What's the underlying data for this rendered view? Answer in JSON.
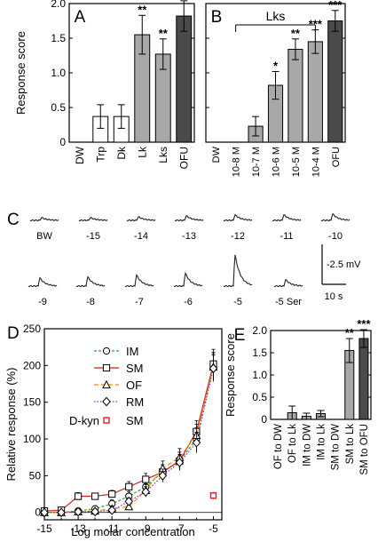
{
  "panels": {
    "A": {
      "letter": "A"
    },
    "B": {
      "letter": "B"
    },
    "C": {
      "letter": "C"
    },
    "D": {
      "letter": "D"
    },
    "E": {
      "letter": "E"
    }
  },
  "colors": {
    "white_bar": "#ffffff",
    "light_gray_bar": "#a8a8a8",
    "dark_gray_bar": "#4a4a4a",
    "im": "#2aa52a",
    "sm": "#d42020",
    "of": "#f08c00",
    "rm": "#8a2be2",
    "dkyn": "#d42020",
    "trace": "#222222"
  },
  "chart_data": [
    {
      "panel": "A",
      "type": "bar",
      "ylabel": "Response score",
      "ylim": [
        0,
        2.0
      ],
      "yticks": [
        "0",
        "0.5",
        "1.0",
        "1.5",
        "2.0"
      ],
      "categories": [
        "DW",
        "Trp",
        "Dk",
        "Lk",
        "Lks",
        "OFU"
      ],
      "values": [
        0,
        0.37,
        0.37,
        1.55,
        1.27,
        1.82
      ],
      "errors": [
        0,
        0.17,
        0.17,
        0.28,
        0.22,
        0.22
      ],
      "fills": [
        "white",
        "white",
        "white",
        "light",
        "light",
        "dark"
      ],
      "annotations": [
        "",
        "",
        "",
        "**",
        "**",
        "***"
      ]
    },
    {
      "panel": "B",
      "type": "bar",
      "ylim": [
        0,
        2.0
      ],
      "bracket_label": "Lks",
      "categories": [
        "DW",
        "10-8 M",
        "10-7 M",
        "10-6 M",
        "10-5 M",
        "10-4 M",
        "OFU"
      ],
      "values": [
        0,
        0,
        0.23,
        0.82,
        1.34,
        1.45,
        1.75
      ],
      "errors": [
        0,
        0,
        0.14,
        0.2,
        0.15,
        0.17,
        0.15
      ],
      "fills": [
        "white",
        "white",
        "light",
        "light",
        "light",
        "light",
        "dark"
      ],
      "annotations": [
        "",
        "",
        "",
        "*",
        "**",
        "***",
        "***"
      ]
    },
    {
      "panel": "C",
      "type": "traces",
      "row1": [
        "BW",
        "-15",
        "-14",
        "-13",
        "-12",
        "-11",
        "-10"
      ],
      "row1_peaks": [
        0.15,
        0.15,
        0.2,
        0.25,
        0.3,
        0.3,
        0.35
      ],
      "row2": [
        "-9",
        "-8",
        "-7",
        "-6",
        "-5",
        "-5 Ser"
      ],
      "row2_peaks": [
        0.45,
        0.5,
        0.6,
        0.7,
        1.7,
        0.35
      ],
      "scale_voltage": "-2.5 mV",
      "scale_time": "10 s"
    },
    {
      "panel": "D",
      "type": "line",
      "xlabel": "Log molar concentration",
      "ylabel": "Relative response (%)",
      "xlim": [
        -15,
        -4.5
      ],
      "ylim": [
        -10,
        250
      ],
      "xticks": [
        "-15",
        "-13",
        "-11",
        "-9",
        "-7",
        "-5"
      ],
      "yticks": [
        "0",
        "50",
        "100",
        "150",
        "200",
        "250"
      ],
      "series": [
        {
          "name": "IM",
          "marker": "circle",
          "dash": "3,2",
          "x": [
            -15,
            -14,
            -13,
            -12,
            -11,
            -10,
            -9,
            -8,
            -7,
            -6,
            -5
          ],
          "y": [
            0,
            0,
            2,
            5,
            12,
            22,
            35,
            55,
            70,
            100,
            200
          ],
          "err": [
            2,
            2,
            3,
            4,
            5,
            6,
            8,
            10,
            12,
            15,
            18
          ]
        },
        {
          "name": "SM",
          "marker": "square",
          "dash": "",
          "x": [
            -15,
            -14,
            -13,
            -12,
            -11,
            -10,
            -9,
            -8,
            -7,
            -6,
            -5
          ],
          "y": [
            2,
            3,
            22,
            22,
            25,
            35,
            45,
            55,
            70,
            110,
            202
          ],
          "err": [
            3,
            3,
            5,
            4,
            5,
            7,
            8,
            10,
            12,
            15,
            20
          ]
        },
        {
          "name": "OF",
          "marker": "triangle",
          "dash": "5,3",
          "x": [
            -15,
            -14,
            -13,
            -12,
            -11,
            -10,
            -9,
            -8,
            -7,
            -6,
            -5
          ],
          "y": [
            0,
            0,
            1,
            2,
            5,
            8,
            30,
            60,
            75,
            105,
            198
          ],
          "err": [
            2,
            2,
            2,
            3,
            4,
            5,
            8,
            10,
            12,
            15,
            18
          ]
        },
        {
          "name": "RM",
          "marker": "diamond",
          "dash": "1.5,2",
          "x": [
            -15,
            -14,
            -13,
            -12,
            -11,
            -10,
            -9,
            -8,
            -7,
            -6,
            -5
          ],
          "y": [
            0,
            0,
            1,
            1,
            3,
            15,
            28,
            50,
            68,
            95,
            196
          ],
          "err": [
            2,
            2,
            2,
            3,
            4,
            5,
            7,
            9,
            11,
            14,
            18
          ]
        }
      ],
      "dkyn": {
        "name": "D-kyn",
        "series_label": "SM",
        "x": -5,
        "y": 23,
        "err": 5
      }
    },
    {
      "panel": "E",
      "type": "bar",
      "ylabel": "Response score",
      "ylim": [
        0,
        2.0
      ],
      "yticks": [
        "0",
        "0.5",
        "1.0",
        "1.5",
        "2.0"
      ],
      "categories": [
        "OF to DW",
        "OF to Lk",
        "IM to DW",
        "IM to Lk",
        "SM to DW",
        "SM to Lk",
        "SM to OFU"
      ],
      "values": [
        0,
        0.15,
        0.07,
        0.13,
        0,
        1.55,
        1.82
      ],
      "errors": [
        0,
        0.15,
        0.07,
        0.07,
        0,
        0.27,
        0.2
      ],
      "fills": [
        "light",
        "light",
        "light",
        "light",
        "light",
        "light",
        "dark"
      ],
      "annotations": [
        "",
        "",
        "",
        "",
        "",
        "**",
        "***"
      ]
    }
  ]
}
